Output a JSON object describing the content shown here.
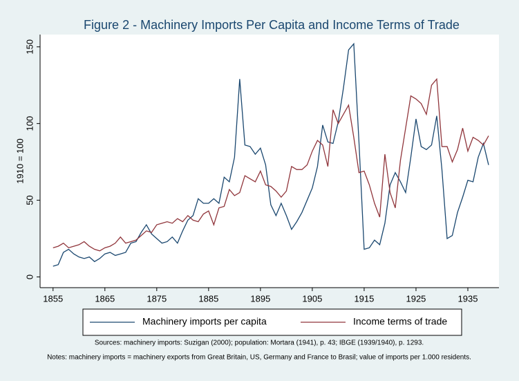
{
  "chart_data": {
    "type": "line",
    "title": "Figure 2 - Machinery Imports Per Capita and Income Terms of Trade",
    "y_label": "1910 = 100",
    "x": [
      1855,
      1856,
      1857,
      1858,
      1859,
      1860,
      1861,
      1862,
      1863,
      1864,
      1865,
      1866,
      1867,
      1868,
      1869,
      1870,
      1871,
      1872,
      1873,
      1874,
      1875,
      1876,
      1877,
      1878,
      1879,
      1880,
      1881,
      1882,
      1883,
      1884,
      1885,
      1886,
      1887,
      1888,
      1889,
      1890,
      1891,
      1892,
      1893,
      1894,
      1895,
      1896,
      1897,
      1898,
      1899,
      1900,
      1901,
      1902,
      1903,
      1904,
      1905,
      1906,
      1907,
      1908,
      1909,
      1910,
      1911,
      1912,
      1913,
      1914,
      1915,
      1916,
      1917,
      1918,
      1919,
      1920,
      1921,
      1922,
      1923,
      1924,
      1925,
      1926,
      1927,
      1928,
      1929,
      1930,
      1931,
      1932,
      1933,
      1934,
      1935,
      1936,
      1937,
      1938,
      1939
    ],
    "series": [
      {
        "name": "Machinery imports per capita",
        "color": "#1a476f",
        "values": [
          7,
          8,
          16,
          18,
          15,
          13,
          12,
          13,
          10,
          12,
          15,
          16,
          14,
          15,
          16,
          22,
          23,
          29,
          34,
          28,
          25,
          22,
          23,
          26,
          22,
          30,
          37,
          40,
          51,
          48,
          48,
          51,
          48,
          65,
          62,
          78,
          129,
          86,
          85,
          80,
          84,
          73,
          47,
          40,
          48,
          40,
          31,
          36,
          42,
          50,
          58,
          72,
          99,
          88,
          87,
          101,
          123,
          148,
          152,
          88,
          18,
          19,
          24,
          21,
          35,
          60,
          68,
          62,
          55,
          78,
          103,
          85,
          83,
          86,
          105,
          70,
          25,
          27,
          42,
          52,
          63,
          62,
          78,
          87,
          73
        ]
      },
      {
        "name": "Income terms of trade",
        "color": "#90353b",
        "values": [
          19,
          20,
          22,
          19,
          20,
          21,
          23,
          20,
          18,
          17,
          19,
          20,
          22,
          26,
          22,
          23,
          24,
          27,
          30,
          29,
          34,
          35,
          36,
          35,
          38,
          36,
          40,
          37,
          36,
          41,
          43,
          34,
          45,
          46,
          57,
          53,
          55,
          66,
          64,
          62,
          69,
          60,
          59,
          56,
          52,
          56,
          72,
          70,
          70,
          73,
          82,
          89,
          86,
          72,
          109,
          100,
          106,
          112,
          91,
          68,
          69,
          60,
          48,
          39,
          80,
          55,
          45,
          76,
          97,
          118,
          116,
          113,
          106,
          125,
          129,
          85,
          85,
          75,
          83,
          97,
          82,
          91,
          89,
          86,
          92
        ]
      }
    ],
    "xlim": [
      1852.5,
      1941
    ],
    "xticks": [
      1855,
      1865,
      1875,
      1885,
      1895,
      1905,
      1915,
      1925,
      1935
    ],
    "ylim": [
      -7,
      158
    ],
    "yticks": [
      0,
      50,
      100,
      150
    ],
    "grid": false,
    "legend": "bottom",
    "notes": [
      "Sources: machinery imports: Suzigan (2000); population: Mortara (1941), p. 43; IBGE (1939/1940), p. 1293.",
      "Notes: machinery imports = machinery exports from Great Britain, US, Germany and France to Brasil; value of imports per 1.000 residents."
    ]
  }
}
